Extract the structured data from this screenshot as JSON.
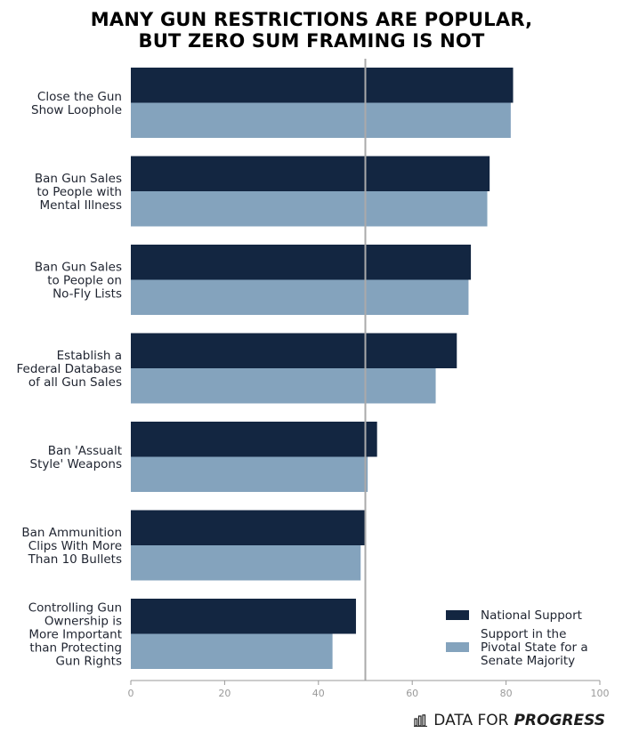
{
  "colors": {
    "national": "#132641",
    "pivotal": "#84a3bd",
    "refline": "#aaaaaa",
    "axis": "#999999"
  },
  "brand": {
    "icon": "bar-chart-logo-icon",
    "text_regular": "DATA FOR",
    "text_bold": "PROGRESS"
  },
  "chart_data": {
    "type": "bar",
    "orientation": "horizontal",
    "title_lines": [
      "MANY GUN RESTRICTIONS ARE POPULAR,",
      "BUT ZERO SUM FRAMING IS NOT"
    ],
    "categories": [
      [
        "Close the Gun",
        "Show Loophole"
      ],
      [
        "Ban Gun Sales",
        "to People with",
        "Mental Illness"
      ],
      [
        "Ban Gun Sales",
        "to People on",
        "No-Fly Lists"
      ],
      [
        "Establish a",
        "Federal Database",
        "of all Gun Sales"
      ],
      [
        "Ban 'Assualt",
        "Style' Weapons"
      ],
      [
        "Ban Ammunition",
        "Clips With More",
        "Than 10 Bullets"
      ],
      [
        "Controlling Gun",
        "Ownership is",
        "More Important",
        "than Protecting",
        "Gun Rights"
      ]
    ],
    "series": [
      {
        "name": "National Support",
        "legend_lines": [
          "National Support"
        ],
        "values": [
          81.5,
          76.5,
          72.5,
          69.5,
          52.5,
          50.0,
          48.0
        ]
      },
      {
        "name": "Support in the Pivotal State for a Senate Majority",
        "legend_lines": [
          "Support in the",
          "Pivotal State for a",
          "Senate Majority"
        ],
        "values": [
          81.0,
          76.0,
          72.0,
          65.0,
          50.5,
          49.0,
          43.0
        ]
      }
    ],
    "xlim": [
      0,
      100
    ],
    "xticks": [
      0,
      20,
      40,
      60,
      80,
      100
    ],
    "reference_line": 50,
    "legend_position": "bottom-right",
    "grid": false,
    "xlabel": "",
    "ylabel": ""
  }
}
